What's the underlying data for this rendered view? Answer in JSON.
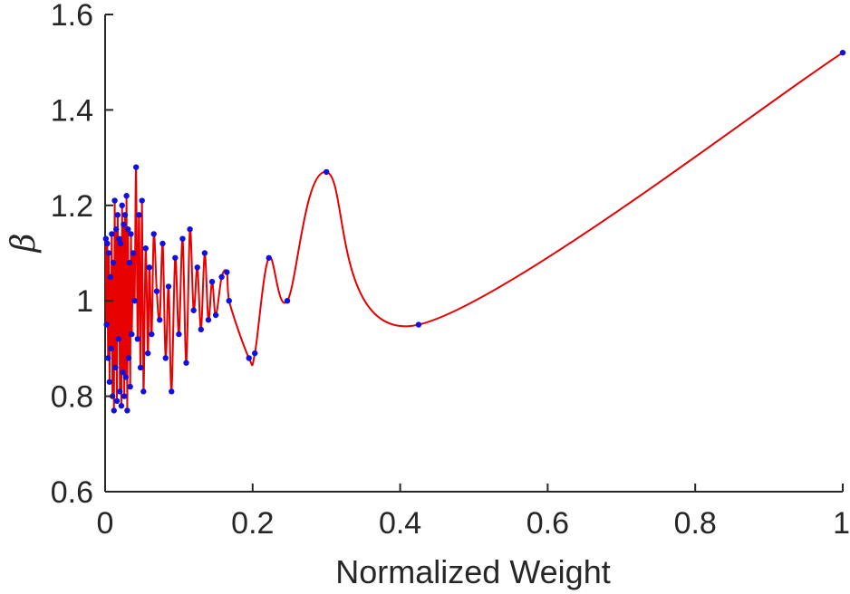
{
  "chart_data": {
    "type": "line",
    "title": "",
    "xlabel": "Normalized Weight",
    "ylabel": "β",
    "xlim": [
      0,
      1
    ],
    "ylim": [
      0.6,
      1.6
    ],
    "x_ticks": [
      0,
      0.2,
      0.4,
      0.6,
      0.8,
      1
    ],
    "x_tick_labels": [
      "0",
      "0.2",
      "0.4",
      "0.6",
      "0.8",
      "1"
    ],
    "y_ticks": [
      0.6,
      0.8,
      1.0,
      1.2,
      1.4,
      1.6
    ],
    "y_tick_labels": [
      "0.6",
      "0.8",
      "1",
      "1.2",
      "1.4",
      "1.6"
    ],
    "grid": false,
    "line_color": "#e60000",
    "marker_color": "#1010e0",
    "series": [
      {
        "x": [
          0.001,
          0.002,
          0.003,
          0.004,
          0.005,
          0.006,
          0.007,
          0.008,
          0.009,
          0.01,
          0.011,
          0.012,
          0.013,
          0.014,
          0.015,
          0.016,
          0.017,
          0.018,
          0.019,
          0.02,
          0.021,
          0.022,
          0.023,
          0.024,
          0.025,
          0.026,
          0.027,
          0.028,
          0.029,
          0.03,
          0.031,
          0.032,
          0.033,
          0.034,
          0.035,
          0.036,
          0.038,
          0.04,
          0.042,
          0.044,
          0.046,
          0.048,
          0.05,
          0.052,
          0.055,
          0.058,
          0.06,
          0.063,
          0.066,
          0.07,
          0.074,
          0.078,
          0.082,
          0.086,
          0.09,
          0.095,
          0.1,
          0.105,
          0.11,
          0.115,
          0.12,
          0.125,
          0.13,
          0.135,
          0.14,
          0.145,
          0.15,
          0.158,
          0.165,
          0.168,
          0.195,
          0.203,
          0.222,
          0.247,
          0.3,
          0.425,
          1.0
        ],
        "y": [
          1.13,
          0.95,
          1.12,
          0.88,
          1.1,
          0.83,
          1.05,
          0.9,
          1.14,
          0.8,
          1.08,
          0.77,
          1.21,
          0.86,
          1.15,
          0.79,
          1.18,
          0.92,
          1.13,
          0.81,
          1.12,
          0.78,
          1.2,
          0.85,
          1.16,
          0.8,
          1.18,
          0.84,
          1.22,
          0.77,
          1.15,
          0.88,
          1.08,
          0.82,
          1.14,
          0.93,
          1.1,
          1.0,
          1.28,
          0.92,
          1.18,
          0.86,
          1.21,
          0.81,
          1.11,
          0.89,
          1.07,
          0.93,
          1.14,
          1.02,
          0.96,
          1.12,
          0.88,
          1.03,
          0.81,
          1.09,
          0.93,
          1.13,
          0.87,
          1.15,
          0.98,
          1.07,
          0.94,
          1.1,
          0.96,
          1.04,
          0.97,
          1.05,
          1.06,
          1.0,
          0.88,
          0.89,
          1.09,
          1.0,
          1.27,
          0.95,
          1.52
        ]
      }
    ]
  }
}
